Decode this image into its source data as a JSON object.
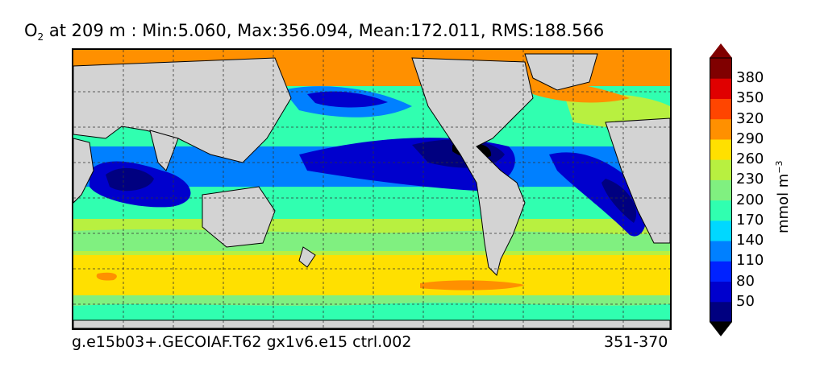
{
  "title": {
    "species": "O",
    "subscript": "2",
    "rest": "  at 209 m : Min:5.060, Max:356.094, Mean:172.011, RMS:188.566"
  },
  "footer": {
    "case_name": "g.e15b03+.GECOIAF.T62 gx1v6.e15 ctrl.002",
    "years": "351-370"
  },
  "colorbar": {
    "unit_label": "mmol m",
    "unit_exponent": "−3",
    "ticks": [
      "380",
      "350",
      "320",
      "290",
      "260",
      "230",
      "200",
      "170",
      "140",
      "110",
      "80",
      "50"
    ],
    "colors": [
      "#000080",
      "#0000cd",
      "#0022ff",
      "#0080ff",
      "#00d8ff",
      "#30ffb0",
      "#80f080",
      "#b8f040",
      "#ffe000",
      "#ff9000",
      "#ff4500",
      "#e00000",
      "#800000"
    ]
  },
  "map": {
    "land_color": "#d3d3d3",
    "grid": true
  }
}
